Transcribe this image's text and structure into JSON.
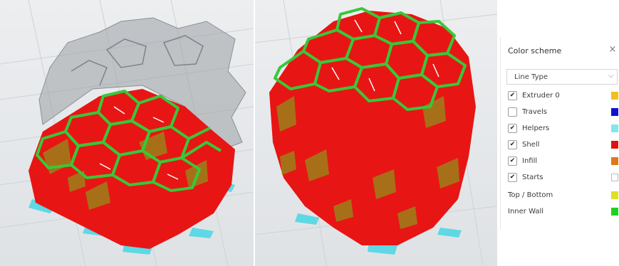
{
  "color_scheme_panel": {
    "title": "Color scheme",
    "close_icon": "×",
    "view_select": {
      "selected": "Line Type",
      "chevron": "⌵"
    },
    "items": [
      {
        "label": "Extruder 0",
        "checked": true,
        "color": "#f0c020",
        "swatch_border": ""
      },
      {
        "label": "Travels",
        "checked": false,
        "color": "#1010d0",
        "swatch_border": ""
      },
      {
        "label": "Helpers",
        "checked": true,
        "color": "#80e8ec",
        "swatch_border": ""
      },
      {
        "label": "Shell",
        "checked": true,
        "color": "#e01010",
        "swatch_border": ""
      },
      {
        "label": "Infill",
        "checked": true,
        "color": "#e07818",
        "swatch_border": ""
      },
      {
        "label": "Starts",
        "checked": true,
        "color": "#ffffff",
        "swatch_border": "#bbbbbb"
      }
    ],
    "legend": [
      {
        "label": "Top / Bottom",
        "color": "#e0e020"
      },
      {
        "label": "Inner Wall",
        "color": "#20d020"
      }
    ]
  },
  "viewports": {
    "left": {
      "name": "sliced-layer-view-partial"
    },
    "right": {
      "name": "sliced-layer-view-full"
    }
  },
  "colors": {
    "shell": "#e81515",
    "inner_wall": "#38c838",
    "infill_dark": "#a07a18",
    "helpers": "#5ed8e4",
    "ghost": "#9aa0a4",
    "background": "#e6e8ea"
  }
}
